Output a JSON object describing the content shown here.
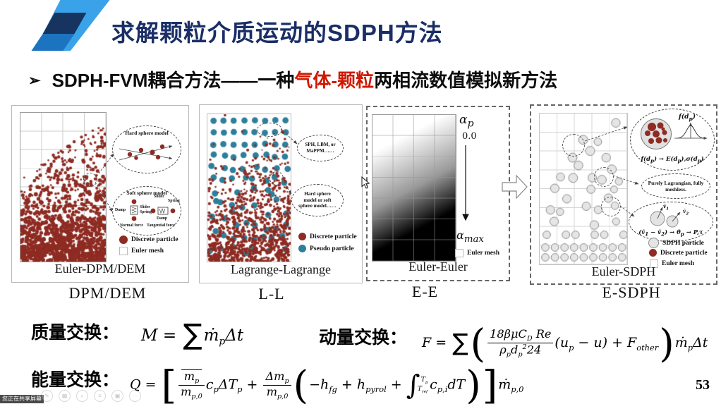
{
  "slide": {
    "title": "求解颗粒介质运动的SDPH方法",
    "bullet": "➢",
    "subtitle_pre": "SDPH-FVM耦合方法——一种",
    "subtitle_highlight": "气体-颗粒",
    "subtitle_post": "两相流数值模拟新方法",
    "page_number": "53"
  },
  "colors": {
    "title_navy": "#1a2e66",
    "highlight_red": "#d01800",
    "discrete_red": "#8e2b22",
    "pseudo_teal": "#2d7f9b",
    "sdph_gray": "#e5e5e5",
    "logo_light_blue": "#3aa2e8",
    "logo_navy": "#16345f",
    "logo_mid_blue": "#1c74c0"
  },
  "panels": [
    {
      "caption": "Euler-DPM/DEM",
      "method_label": "DPM/DEM",
      "annotations": {
        "hard_title": "Hard sphere model",
        "soft_title": "Soft sphere model",
        "damp": "Damp",
        "slider": "Slider",
        "spring": "Spring",
        "normal_force": "Normal force",
        "tangential_force": "Tangential force"
      },
      "legend": [
        {
          "label": "Discrete particle"
        },
        {
          "label": "Euler mesh"
        }
      ]
    },
    {
      "caption": "Lagrange-Lagrange",
      "method_label": "L-L",
      "annotations": {
        "bubble1": "SPH, LBM, or MaPPM……",
        "bubble2": "Hard sphere model or soft sphere model……"
      },
      "legend": [
        {
          "label": "Discrete particle"
        },
        {
          "label": "Pseudo particle"
        }
      ]
    },
    {
      "caption": "Euler-Euler",
      "method_label": "E-E",
      "labels": {
        "alpha_top_html": "α<sub>p</sub>",
        "zero": "0.0",
        "alpha_bottom_html": "α<sub>max</sub>"
      },
      "legend": [
        {
          "label": "Euler mesh"
        }
      ]
    },
    {
      "caption": "Euler-SDPH",
      "method_label": "E-SDPH",
      "annotations": {
        "fd_html": "f(d<sub>p</sub>)",
        "dist_html": "f(d<sub>p</sub>) → E(d<sub>p</sub>),σ(d<sub>p</sub>)",
        "lagrangian": "Purely Lagrangian, fully meshless.",
        "v1_html": "v̄<sub>1</sub>",
        "v2_html": "v̄<sub>2</sub>",
        "vel_html": "(v̄<sub>1</sub> − v̄<sub>2</sub>) → θ<sub>p</sub> → P,τ"
      },
      "legend": [
        {
          "label": "SDPH particle"
        },
        {
          "label": "Discrete particle"
        },
        {
          "label": "Euler mesh"
        }
      ]
    }
  ],
  "formulas": {
    "mass_label": "质量交换：",
    "mass_html": "M = <span class='sum'>∑</span>ṁ<sub>p</sub>Δt",
    "momentum_label": "动量交换：",
    "momentum_html": "F = <span class='sum'>∑</span><span class='br'>(</span><span class='frac'><span class='nm'>18βμC<sub>D</sub> Re</span><span class='dn'>ρ<sub>p</sub>d<sub>p</sub><sup>2</sup>24</span></span>(u<sub>p</sub> − u) + F<sub>other</sub><span class='br'>)</span>ṁ<sub>p</sub>Δt",
    "energy_label": "能量交换：",
    "energy_html": "Q = <span class='br sq'>[</span><span class='frac'><span class='nm ovl'>m<sub>p</sub></span><span class='dn'>m<sub>p,0</sub></span></span>c<sub>p</sub>ΔT<sub>p</sub> + <span class='frac'><span class='nm'>Δm<sub>p</sub></span><span class='dn'>m<sub>p,0</sub></span></span><span class='br'>(</span>−h<sub>fg</sub> + h<sub>pyrol</sub> + <span class='intg'>∫</span><span class='lims'><span>T<sub>p</sub></span><span>T<sub>ref</sub></span></span>c<sub>p,i</sub>dT<span class='br'>)</span><span class='br sq'>]</span>ṁ<sub>p,0</sub>"
  },
  "share_bar": {
    "label": "您正在共享屏幕",
    "icons": [
      {
        "name": "annotate-icon",
        "glyph": "✎"
      },
      {
        "name": "apps-icon",
        "glyph": "▦"
      },
      {
        "name": "zoom-icon",
        "glyph": "⌕"
      },
      {
        "name": "menu-icon",
        "glyph": "≡"
      },
      {
        "name": "camera-icon",
        "glyph": "▣"
      },
      {
        "name": "more-icon",
        "glyph": "⋯"
      }
    ]
  }
}
